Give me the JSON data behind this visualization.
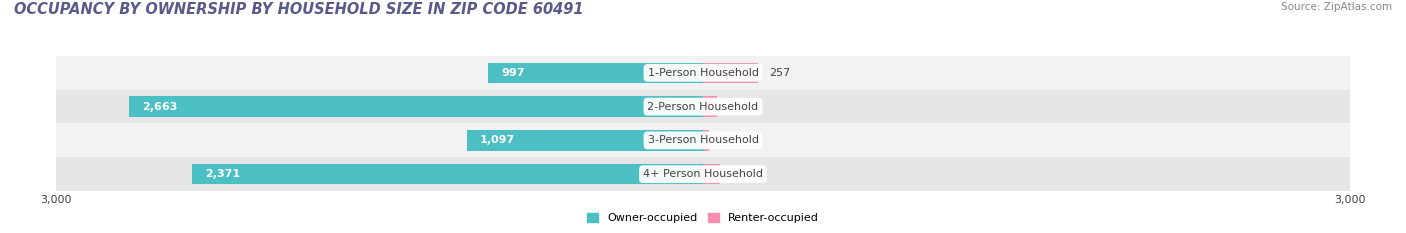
{
  "title": "OCCUPANCY BY OWNERSHIP BY HOUSEHOLD SIZE IN ZIP CODE 60491",
  "source": "Source: ZipAtlas.com",
  "categories": [
    "1-Person Household",
    "2-Person Household",
    "3-Person Household",
    "4+ Person Household"
  ],
  "owner_values": [
    997,
    2663,
    1097,
    2371
  ],
  "renter_values": [
    257,
    66,
    28,
    81
  ],
  "owner_color": "#4bbfc3",
  "renter_color": "#f48fb1",
  "axis_max": 3000,
  "title_color": "#5a5a8a",
  "title_fontsize": 10.5,
  "label_fontsize": 8,
  "source_fontsize": 7.5,
  "tick_fontsize": 8,
  "bg_color": "#ffffff",
  "bar_height": 0.6,
  "legend_owner": "Owner-occupied",
  "legend_renter": "Renter-occupied",
  "row_colors": [
    "#f2f2f2",
    "#e6e6e6"
  ]
}
